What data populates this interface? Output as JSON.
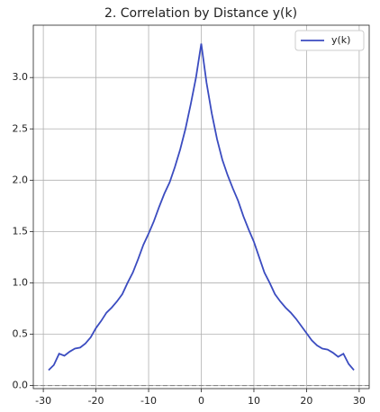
{
  "chart_data": {
    "type": "line",
    "title": "2. Correlation by Distance y(k)",
    "x": [
      -29,
      -28,
      -27,
      -26,
      -25,
      -24,
      -23,
      -22,
      -21,
      -20,
      -19,
      -18,
      -17,
      -16,
      -15,
      -14,
      -13,
      -12,
      -11,
      -10,
      -9,
      -8,
      -7,
      -6,
      -5,
      -4,
      -3,
      -2,
      -1,
      0,
      1,
      2,
      3,
      4,
      5,
      6,
      7,
      8,
      9,
      10,
      11,
      12,
      13,
      14,
      15,
      16,
      17,
      18,
      19,
      20,
      21,
      22,
      23,
      24,
      25,
      26,
      27,
      28,
      29
    ],
    "series": [
      {
        "name": "y(k)",
        "color": "#3b4cc0",
        "values": [
          0.15,
          0.2,
          0.31,
          0.29,
          0.33,
          0.36,
          0.37,
          0.41,
          0.47,
          0.56,
          0.63,
          0.71,
          0.76,
          0.82,
          0.89,
          1.0,
          1.1,
          1.23,
          1.37,
          1.48,
          1.6,
          1.74,
          1.87,
          1.98,
          2.13,
          2.3,
          2.5,
          2.74,
          3.0,
          3.33,
          2.95,
          2.65,
          2.4,
          2.2,
          2.05,
          1.92,
          1.8,
          1.65,
          1.52,
          1.4,
          1.25,
          1.1,
          1.0,
          0.89,
          0.82,
          0.76,
          0.71,
          0.65,
          0.58,
          0.51,
          0.44,
          0.39,
          0.36,
          0.35,
          0.32,
          0.28,
          0.31,
          0.21,
          0.15
        ]
      }
    ],
    "reference_line": {
      "value": 0,
      "color": "#808080",
      "style": "dashed"
    },
    "xlim": [
      -31.9,
      31.9
    ],
    "ylim": [
      -0.03,
      3.51
    ],
    "xticks": [
      -30,
      -20,
      -10,
      0,
      10,
      20,
      30
    ],
    "yticks": [
      {
        "value": 0,
        "label": "0.0"
      },
      {
        "value": 0.5,
        "label": "0.5"
      },
      {
        "value": 1,
        "label": "1.0"
      },
      {
        "value": 1.5,
        "label": "1.5"
      },
      {
        "value": 2,
        "label": "2.0"
      },
      {
        "value": 2.5,
        "label": "2.5"
      },
      {
        "value": 3,
        "label": "3.0"
      }
    ],
    "grid": true,
    "legend": "upper right"
  }
}
